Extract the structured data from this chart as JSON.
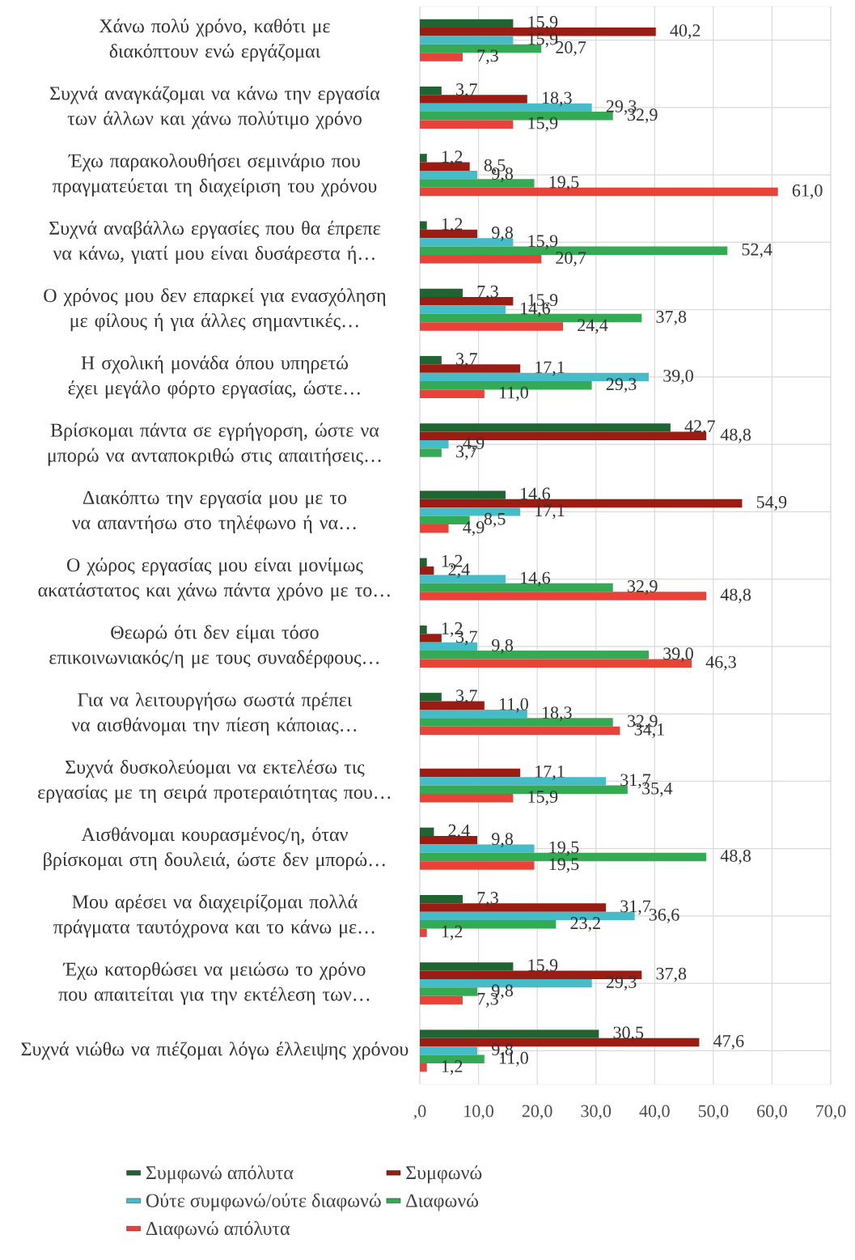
{
  "chart_data": {
    "type": "bar",
    "orientation": "horizontal",
    "categories": [
      "Χάνω πολύ χρόνο, καθότι με διακόπτουν ενώ εργάζομαι",
      "Συχνά αναγκάζομαι να κάνω την εργασία των άλλων και χάνω πολύτιμο χρόνο",
      "Έχω παρακολουθήσει σεμινάριο που πραγματεύεται τη διαχείριση του χρόνου",
      "Συχνά αναβάλλω εργασίες που θα έπρεπε να κάνω, γιατί μου είναι δυσάρεστα ή…",
      "Ο χρόνος μου δεν επαρκεί για ενασχόληση με φίλους ή για άλλες σημαντικές…",
      "Η σχολική μονάδα όπου υπηρετώ έχει μεγάλο φόρτο εργασίας, ώστε…",
      "Βρίσκομαι πάντα σε εγρήγορση, ώστε να μπορώ να ανταποκριθώ στις απαιτήσεις…",
      "Διακόπτω την εργασία μου με το να απαντήσω στο τηλέφωνο ή να…",
      "Ο χώρος εργασίας μου είναι μονίμως ακατάστατος και χάνω πάντα χρόνο με το…",
      "Θεωρώ ότι δεν είμαι τόσο επικοινωνιακός/η με τους συναδέρφους…",
      "Για να λειτουργήσω σωστά πρέπει να αισθάνομαι την πίεση κάποιας…",
      "Συχνά δυσκολεύομαι να εκτελέσω τις εργασίας με τη σειρά προτεραιότητας που…",
      "Αισθάνομαι κουρασμένος/η, όταν βρίσκομαι στη δουλειά, ώστε δεν μπορώ…",
      "Μου αρέσει να διαχειρίζομαι πολλά πράγματα ταυτόχρονα και το κάνω με…",
      "Έχω κατορθώσει να μειώσω το χρόνο που απαιτείται για την εκτέλεση των…",
      "Συχνά νιώθω να πιέζομαι λόγω έλλειψης χρόνου"
    ],
    "series": [
      {
        "name": "Συμφωνώ απόλυτα",
        "color": "#1e6532",
        "values": [
          15.9,
          3.7,
          1.2,
          1.2,
          7.3,
          3.7,
          42.7,
          14.6,
          1.2,
          1.2,
          3.7,
          null,
          2.4,
          7.3,
          15.9,
          30.5
        ],
        "value_labels": [
          "15,9",
          "3,7",
          "1,2",
          "1,2",
          "7,3",
          "3,7",
          "42,7",
          "14,6",
          "1,2",
          "1,2",
          "3,7",
          null,
          "2,4",
          "7,3",
          "15,9",
          "30,5"
        ]
      },
      {
        "name": "Συμφωνώ",
        "color": "#9b1c12",
        "values": [
          40.2,
          18.3,
          8.5,
          9.8,
          15.9,
          17.1,
          48.8,
          54.9,
          2.4,
          3.7,
          11.0,
          17.1,
          9.8,
          31.7,
          37.8,
          47.6
        ],
        "value_labels": [
          "40,2",
          "18,3",
          "8,5",
          "9,8",
          "15,9",
          "17,1",
          "48,8",
          "54,9",
          "2,4",
          "3,7",
          "11,0",
          "17,1",
          "9,8",
          "31,7",
          "37,8",
          "47,6"
        ]
      },
      {
        "name": "Ούτε συμφωνώ/ούτε διαφωνώ",
        "color": "#45bcc8",
        "values": [
          15.9,
          29.3,
          9.8,
          15.9,
          14.6,
          39.0,
          4.9,
          17.1,
          14.6,
          9.8,
          18.3,
          31.7,
          19.5,
          36.6,
          29.3,
          9.8
        ],
        "value_labels": [
          "15,9",
          "29,3",
          "9,8",
          "15,9",
          "14,6",
          "39,0",
          "4,9",
          "17,1",
          "14,6",
          "9,8",
          "18,3",
          "31,7",
          "19,5",
          "36,6",
          "29,3",
          "9,8"
        ]
      },
      {
        "name": "Διαφωνώ",
        "color": "#35aa55",
        "values": [
          20.7,
          32.9,
          19.5,
          52.4,
          37.8,
          29.3,
          3.7,
          8.5,
          32.9,
          39.0,
          32.9,
          35.4,
          48.8,
          23.2,
          9.8,
          11.0
        ],
        "value_labels": [
          "20,7",
          "32,9",
          "19,5",
          "52,4",
          "37,8",
          "29,3",
          "3,7",
          "8,5",
          "32,9",
          "39,0",
          "32,9",
          "35,4",
          "48,8",
          "23,2",
          "9,8",
          "11,0"
        ]
      },
      {
        "name": "Διαφωνώ απόλυτα",
        "color": "#e84338",
        "values": [
          7.3,
          15.9,
          61.0,
          20.7,
          24.4,
          11.0,
          null,
          4.9,
          48.8,
          46.3,
          34.1,
          15.9,
          19.5,
          1.2,
          7.3,
          1.2
        ],
        "value_labels": [
          "7,3",
          "15,9",
          "61,0",
          "20,7",
          "24,4",
          "11,0",
          null,
          "4,9",
          "48,8",
          "46,3",
          "34,1",
          "15,9",
          "19,5",
          "1,2",
          "7,3",
          "1,2"
        ]
      }
    ],
    "xlim": [
      0,
      70
    ],
    "xticks": [
      {
        "value": 0,
        "label": ",0"
      },
      {
        "value": 10,
        "label": "10,0"
      },
      {
        "value": 20,
        "label": "20,0"
      },
      {
        "value": 30,
        "label": "30,0"
      },
      {
        "value": 40,
        "label": "40,0"
      },
      {
        "value": 50,
        "label": "50,0"
      },
      {
        "value": 60,
        "label": "60,0"
      },
      {
        "value": 70,
        "label": "70,0"
      }
    ],
    "grid": true,
    "legend": "bottom"
  }
}
